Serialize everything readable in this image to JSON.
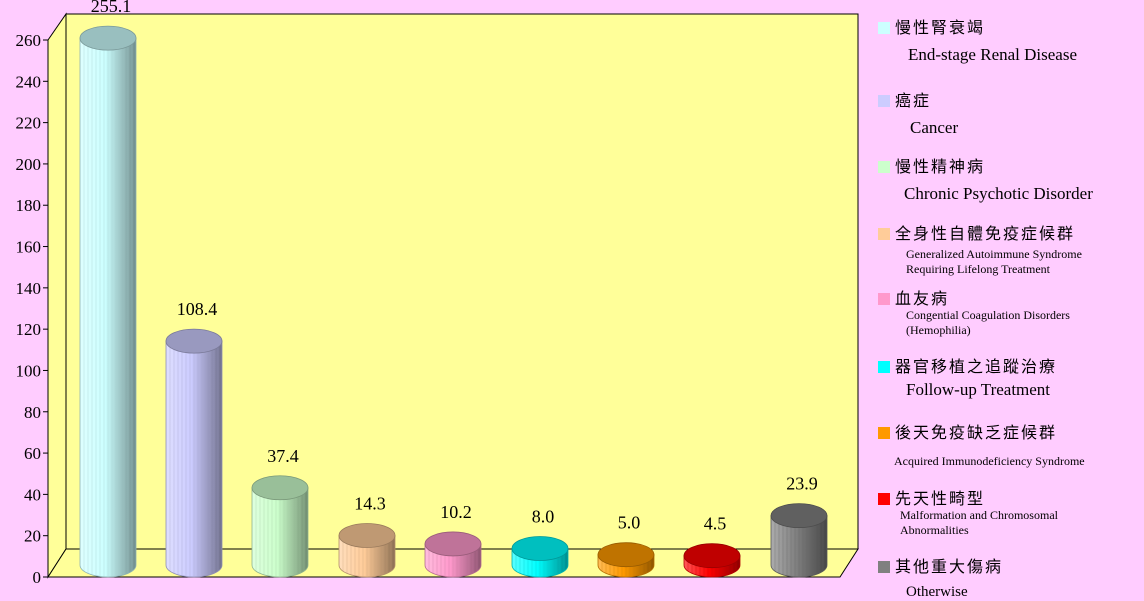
{
  "chart_data": {
    "type": "bar",
    "style": "3d-cylinder",
    "ylim": [
      0,
      260
    ],
    "yticks": [
      0,
      20,
      40,
      60,
      80,
      100,
      120,
      140,
      160,
      180,
      200,
      220,
      240,
      260
    ],
    "grid": false,
    "legend_position": "right",
    "plot_background": "#FFFF99",
    "categories": [
      {
        "zh": "慢性腎衰竭",
        "en": "End-stage Renal Disease"
      },
      {
        "zh": "癌症",
        "en": "Cancer"
      },
      {
        "zh": "慢性精神病",
        "en": "Chronic Psychotic Disorder"
      },
      {
        "zh": "全身性自體免疫症候群",
        "en": "Generalized Autoimmune Syndrome\nRequiring Lifelong Treatment"
      },
      {
        "zh": "血友病",
        "en": "Congential Coagulation Disorders\n(Hemophilia)"
      },
      {
        "zh": "器官移植之追蹤治療",
        "en": "Follow-up Treatment"
      },
      {
        "zh": "後天免疫缺乏症候群",
        "en": "Acquired Immunodeficiency Syndrome"
      },
      {
        "zh": "先天性畸型",
        "en": "Malformation and Chromosomal\nAbnormalities"
      },
      {
        "zh": "其他重大傷病",
        "en": "Otherwise"
      }
    ],
    "values": [
      255.1,
      108.4,
      37.4,
      14.3,
      10.2,
      8.0,
      5.0,
      4.5,
      23.9
    ],
    "value_labels": [
      "255.1",
      "108.4",
      "37.4",
      "14.3",
      "10.2",
      "8.0",
      "5.0",
      "4.5",
      "23.9"
    ],
    "colors": [
      "#CCFFFF",
      "#CCCCFF",
      "#CCFFCC",
      "#FFCC99",
      "#FF99CC",
      "#00FFFF",
      "#FF9900",
      "#FF0000",
      "#808080"
    ]
  }
}
